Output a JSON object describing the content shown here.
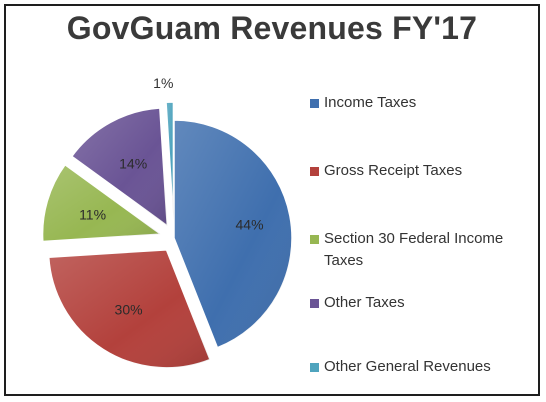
{
  "chart_data": {
    "type": "pie",
    "title": "GovGuam Revenues FY'17",
    "categories": [
      "Income Taxes",
      "Gross Receipt Taxes",
      "Section 30 Federal Income Taxes",
      "Other Taxes",
      "Other General Revenues"
    ],
    "values": [
      44,
      30,
      11,
      14,
      1
    ],
    "labels": [
      "44%",
      "30%",
      "11%",
      "14%",
      "1%"
    ],
    "colors": [
      "#3f6fae",
      "#b3413c",
      "#97b752",
      "#6a5495",
      "#4fa4be"
    ],
    "exploded": true,
    "legend_position": "right"
  }
}
